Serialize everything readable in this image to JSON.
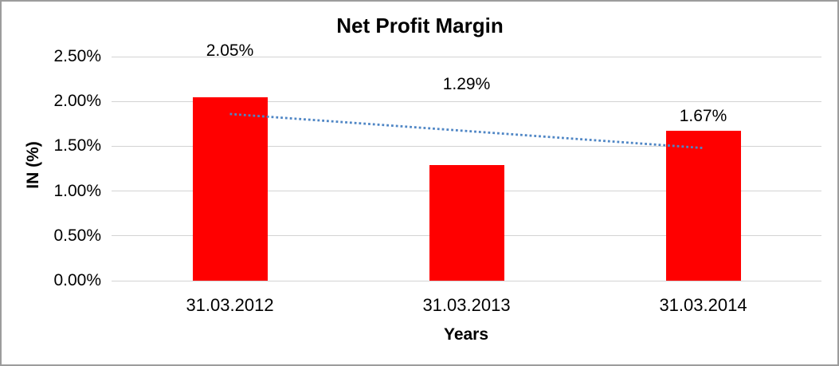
{
  "chart_data": {
    "type": "bar",
    "title": "Net Profit Margin",
    "xlabel": "Years",
    "ylabel": "IN (%)",
    "categories": [
      "31.03.2012",
      "31.03.2013",
      "31.03.2014"
    ],
    "values": [
      2.05,
      1.29,
      1.67
    ],
    "data_labels": [
      "2.05%",
      "1.29%",
      "1.67%"
    ],
    "ylim": [
      0,
      2.5
    ],
    "ytick_values": [
      0,
      0.5,
      1,
      1.5,
      2,
      2.5
    ],
    "ytick_labels": [
      "0.00%",
      "0.50%",
      "1.00%",
      "1.50%",
      "2.00%",
      "2.50%"
    ],
    "grid": true,
    "legend": "none",
    "bar_color": "#FF0000",
    "text_color": "#000000",
    "gridline_color": "#d3d3d3",
    "trendline": {
      "type": "linear",
      "style": "dotted",
      "color": "#4F86C5",
      "start_value": 1.86,
      "end_value": 1.48
    }
  }
}
